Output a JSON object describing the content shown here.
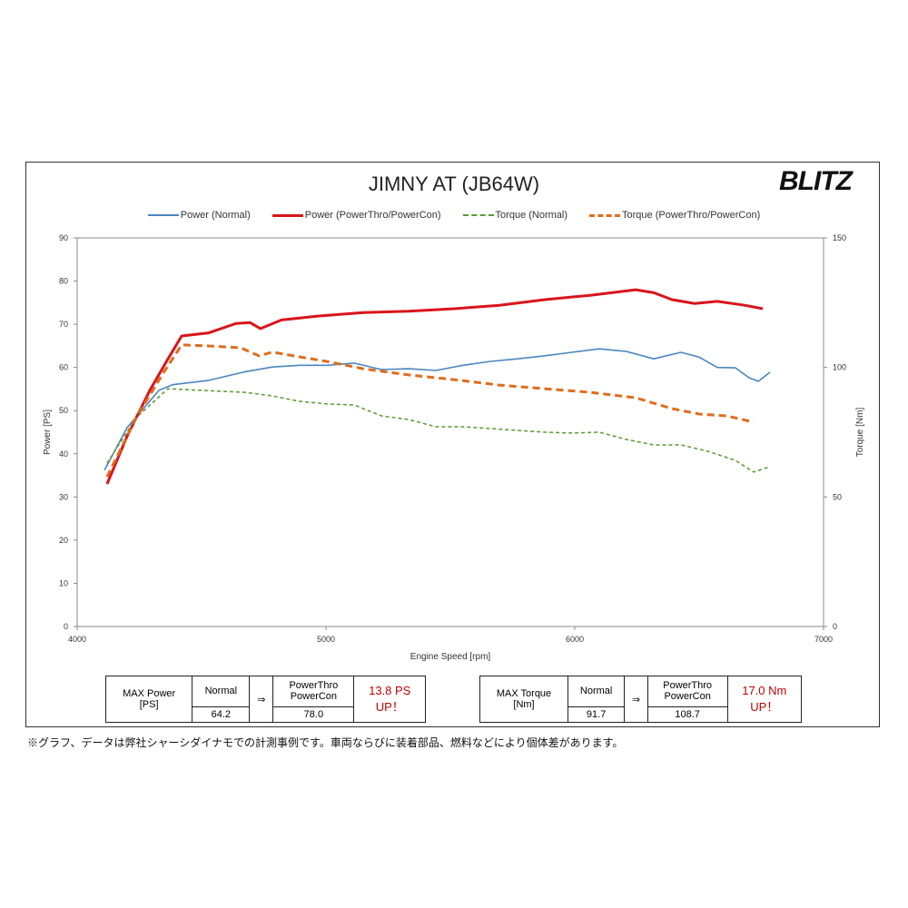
{
  "title": "JIMNY AT (JB64W)",
  "logo": "BLITZ",
  "colors": {
    "power_normal": "#4a86c0",
    "power_tuned": "#d9141b",
    "torque_normal": "#5a9a32",
    "torque_tuned": "#e06c1a"
  },
  "chart_data": {
    "type": "line",
    "title": "JIMNY AT (JB64W)",
    "xlabel": "Engine Speed [rpm]",
    "ylabel": "Power [PS]",
    "y2label": "Torque [Nm]",
    "xlim": [
      4000,
      7000
    ],
    "ylim": [
      0,
      90
    ],
    "y2lim": [
      0,
      150
    ],
    "xticks": [
      "4000",
      "5000",
      "6000",
      "7000"
    ],
    "yticks": [
      "0",
      "10",
      "20",
      "30",
      "40",
      "50",
      "60",
      "70",
      "80",
      "90"
    ],
    "y2ticks": [
      "0",
      "50",
      "100",
      "150"
    ],
    "legend_position": "top",
    "series": [
      {
        "name": "Power (Normal)",
        "axis": "left",
        "style": "solid",
        "points": [
          [
            4110,
            36.2
          ],
          [
            4200,
            46
          ],
          [
            4329,
            54.7
          ],
          [
            4383,
            56
          ],
          [
            4529,
            57
          ],
          [
            4675,
            59
          ],
          [
            4785,
            60.1
          ],
          [
            4894,
            60.5
          ],
          [
            5004,
            60.5
          ],
          [
            5113,
            61
          ],
          [
            5223,
            59.5
          ],
          [
            5332,
            59.7
          ],
          [
            5442,
            59.3
          ],
          [
            5551,
            60.5
          ],
          [
            5661,
            61.4
          ],
          [
            5770,
            62
          ],
          [
            5880,
            62.7
          ],
          [
            5989,
            63.5
          ],
          [
            6099,
            64.3
          ],
          [
            6208,
            63.7
          ],
          [
            6318,
            62
          ],
          [
            6427,
            63.5
          ],
          [
            6500,
            62.4
          ],
          [
            6573,
            60
          ],
          [
            6646,
            59.9
          ],
          [
            6701,
            57.6
          ],
          [
            6738,
            56.8
          ],
          [
            6785,
            58.9
          ]
        ]
      },
      {
        "name": "Power (PowerThro/PowerCon)",
        "axis": "left",
        "style": "thick",
        "points": [
          [
            4120,
            33
          ],
          [
            4200,
            44
          ],
          [
            4292,
            54.7
          ],
          [
            4365,
            62
          ],
          [
            4420,
            67.3
          ],
          [
            4529,
            68
          ],
          [
            4639,
            70.2
          ],
          [
            4694,
            70.4
          ],
          [
            4737,
            69
          ],
          [
            4821,
            71
          ],
          [
            4967,
            71.9
          ],
          [
            5150,
            72.7
          ],
          [
            5332,
            73
          ],
          [
            5515,
            73.6
          ],
          [
            5697,
            74.4
          ],
          [
            5880,
            75.7
          ],
          [
            6062,
            76.7
          ],
          [
            6245,
            78
          ],
          [
            6318,
            77.3
          ],
          [
            6391,
            75.7
          ],
          [
            6482,
            74.8
          ],
          [
            6573,
            75.3
          ],
          [
            6683,
            74.4
          ],
          [
            6756,
            73.6
          ]
        ]
      },
      {
        "name": "Torque (Normal)",
        "axis": "right",
        "style": "dotted",
        "points": [
          [
            4120,
            63
          ],
          [
            4237,
            80.6
          ],
          [
            4365,
            91.8
          ],
          [
            4529,
            91
          ],
          [
            4675,
            90.4
          ],
          [
            4785,
            89
          ],
          [
            4894,
            86.9
          ],
          [
            5004,
            85.9
          ],
          [
            5113,
            85.5
          ],
          [
            5223,
            81.3
          ],
          [
            5332,
            79.9
          ],
          [
            5442,
            77.1
          ],
          [
            5551,
            77.1
          ],
          [
            5661,
            76.4
          ],
          [
            5770,
            75.7
          ],
          [
            5880,
            75
          ],
          [
            5989,
            74.7
          ],
          [
            6099,
            75
          ],
          [
            6208,
            72.2
          ],
          [
            6318,
            70.1
          ],
          [
            6427,
            70.1
          ],
          [
            6537,
            67.6
          ],
          [
            6646,
            64.1
          ],
          [
            6719,
            59.6
          ],
          [
            6785,
            61.7
          ]
        ]
      },
      {
        "name": "Torque (PowerThro/PowerCon)",
        "axis": "right",
        "style": "dashed",
        "points": [
          [
            4120,
            57.8
          ],
          [
            4237,
            80.6
          ],
          [
            4347,
            98
          ],
          [
            4420,
            108.7
          ],
          [
            4529,
            108.3
          ],
          [
            4657,
            107.6
          ],
          [
            4730,
            104.5
          ],
          [
            4785,
            105.9
          ],
          [
            4894,
            104.1
          ],
          [
            5004,
            102.3
          ],
          [
            5150,
            99.5
          ],
          [
            5332,
            97.1
          ],
          [
            5515,
            95.3
          ],
          [
            5697,
            93.2
          ],
          [
            5880,
            91.8
          ],
          [
            6062,
            90.4
          ],
          [
            6245,
            88.3
          ],
          [
            6391,
            84.1
          ],
          [
            6500,
            82
          ],
          [
            6610,
            81.3
          ],
          [
            6719,
            78.9
          ]
        ]
      }
    ]
  },
  "power_table": {
    "label1": "MAX Power",
    "label2": "[PS]",
    "normal_label": "Normal",
    "normal_value": "64.2",
    "arrow": "⇒",
    "tuned_label1": "PowerThro",
    "tuned_label2": "PowerCon",
    "tuned_value": "78.0",
    "gain1": "13.8 PS",
    "gain2": "UP！"
  },
  "torque_table": {
    "label1": "MAX Torque",
    "label2": "[Nm]",
    "normal_label": "Normal",
    "normal_value": "91.7",
    "arrow": "⇒",
    "tuned_label1": "PowerThro",
    "tuned_label2": "PowerCon",
    "tuned_value": "108.7",
    "gain1": "17.0 Nm",
    "gain2": "UP！"
  },
  "footnote": "※グラフ、データは弊社シャーシダイナモでの計測事例です。車両ならびに装着部品、燃料などにより個体差があります。"
}
